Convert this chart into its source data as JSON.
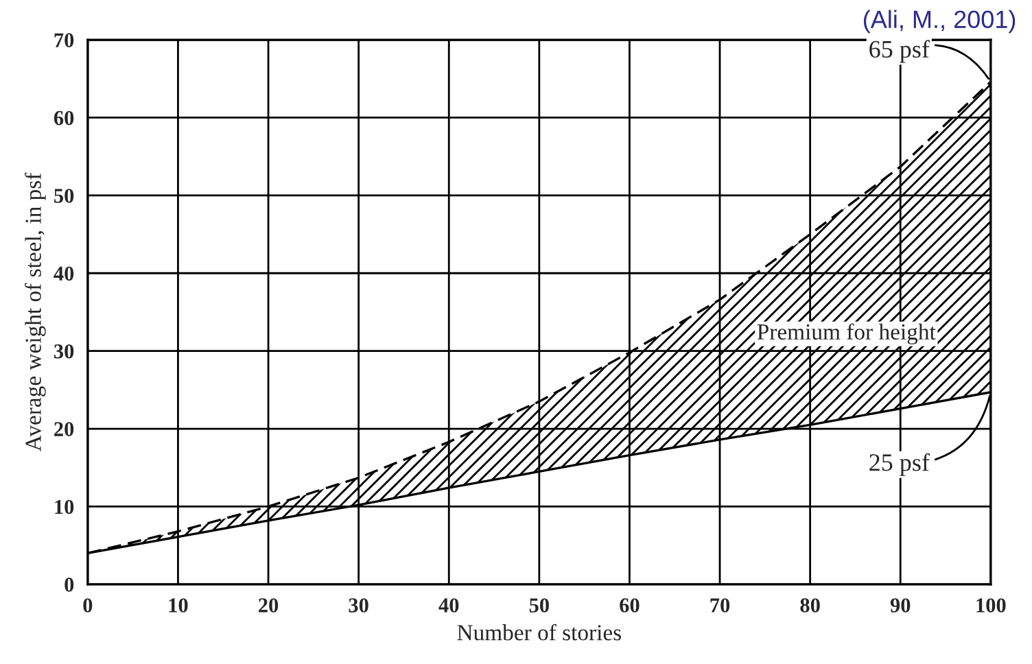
{
  "chart_data": {
    "type": "line",
    "xlabel": "Number of stories",
    "ylabel": "Average weight of steel, in psf",
    "x": [
      0,
      10,
      20,
      30,
      40,
      50,
      60,
      70,
      80,
      90,
      100
    ],
    "series": [
      {
        "color": "#000000",
        "line_style": "solid",
        "values": [
          4,
          6.1,
          8.2,
          10.2,
          12.4,
          14.5,
          16.6,
          18.6,
          20.5,
          22.6,
          24.7
        ]
      },
      {
        "color": "#000000",
        "line_style": "dashed",
        "values": [
          4,
          6.8,
          10,
          13.7,
          18.3,
          23.5,
          29.8,
          36.6,
          45,
          53.7,
          64.6
        ],
        "lower": [
          4,
          6.1,
          8.2,
          10.2,
          12.4,
          14.5,
          16.6,
          18.6,
          20.5,
          22.6,
          24.7
        ],
        "upper": [
          4,
          6.8,
          10,
          13.7,
          18.3,
          23.5,
          29.8,
          36.6,
          45,
          53.7,
          64.6
        ]
      }
    ],
    "xlim": [
      0,
      100
    ],
    "ylim": [
      0,
      70
    ],
    "xticks": [
      0,
      10,
      20,
      30,
      40,
      50,
      60,
      70,
      80,
      90,
      100
    ],
    "yticks": [
      0,
      10,
      20,
      30,
      40,
      50,
      60,
      70
    ],
    "grid": true,
    "marker": "none",
    "annotations": [
      {
        "text": "65 psf",
        "x": 100,
        "y": 64.6
      },
      {
        "text": "25 psf",
        "x": 100,
        "y": 24.7
      },
      "Premium for height",
      "(Ali, M., 2001)"
    ]
  }
}
